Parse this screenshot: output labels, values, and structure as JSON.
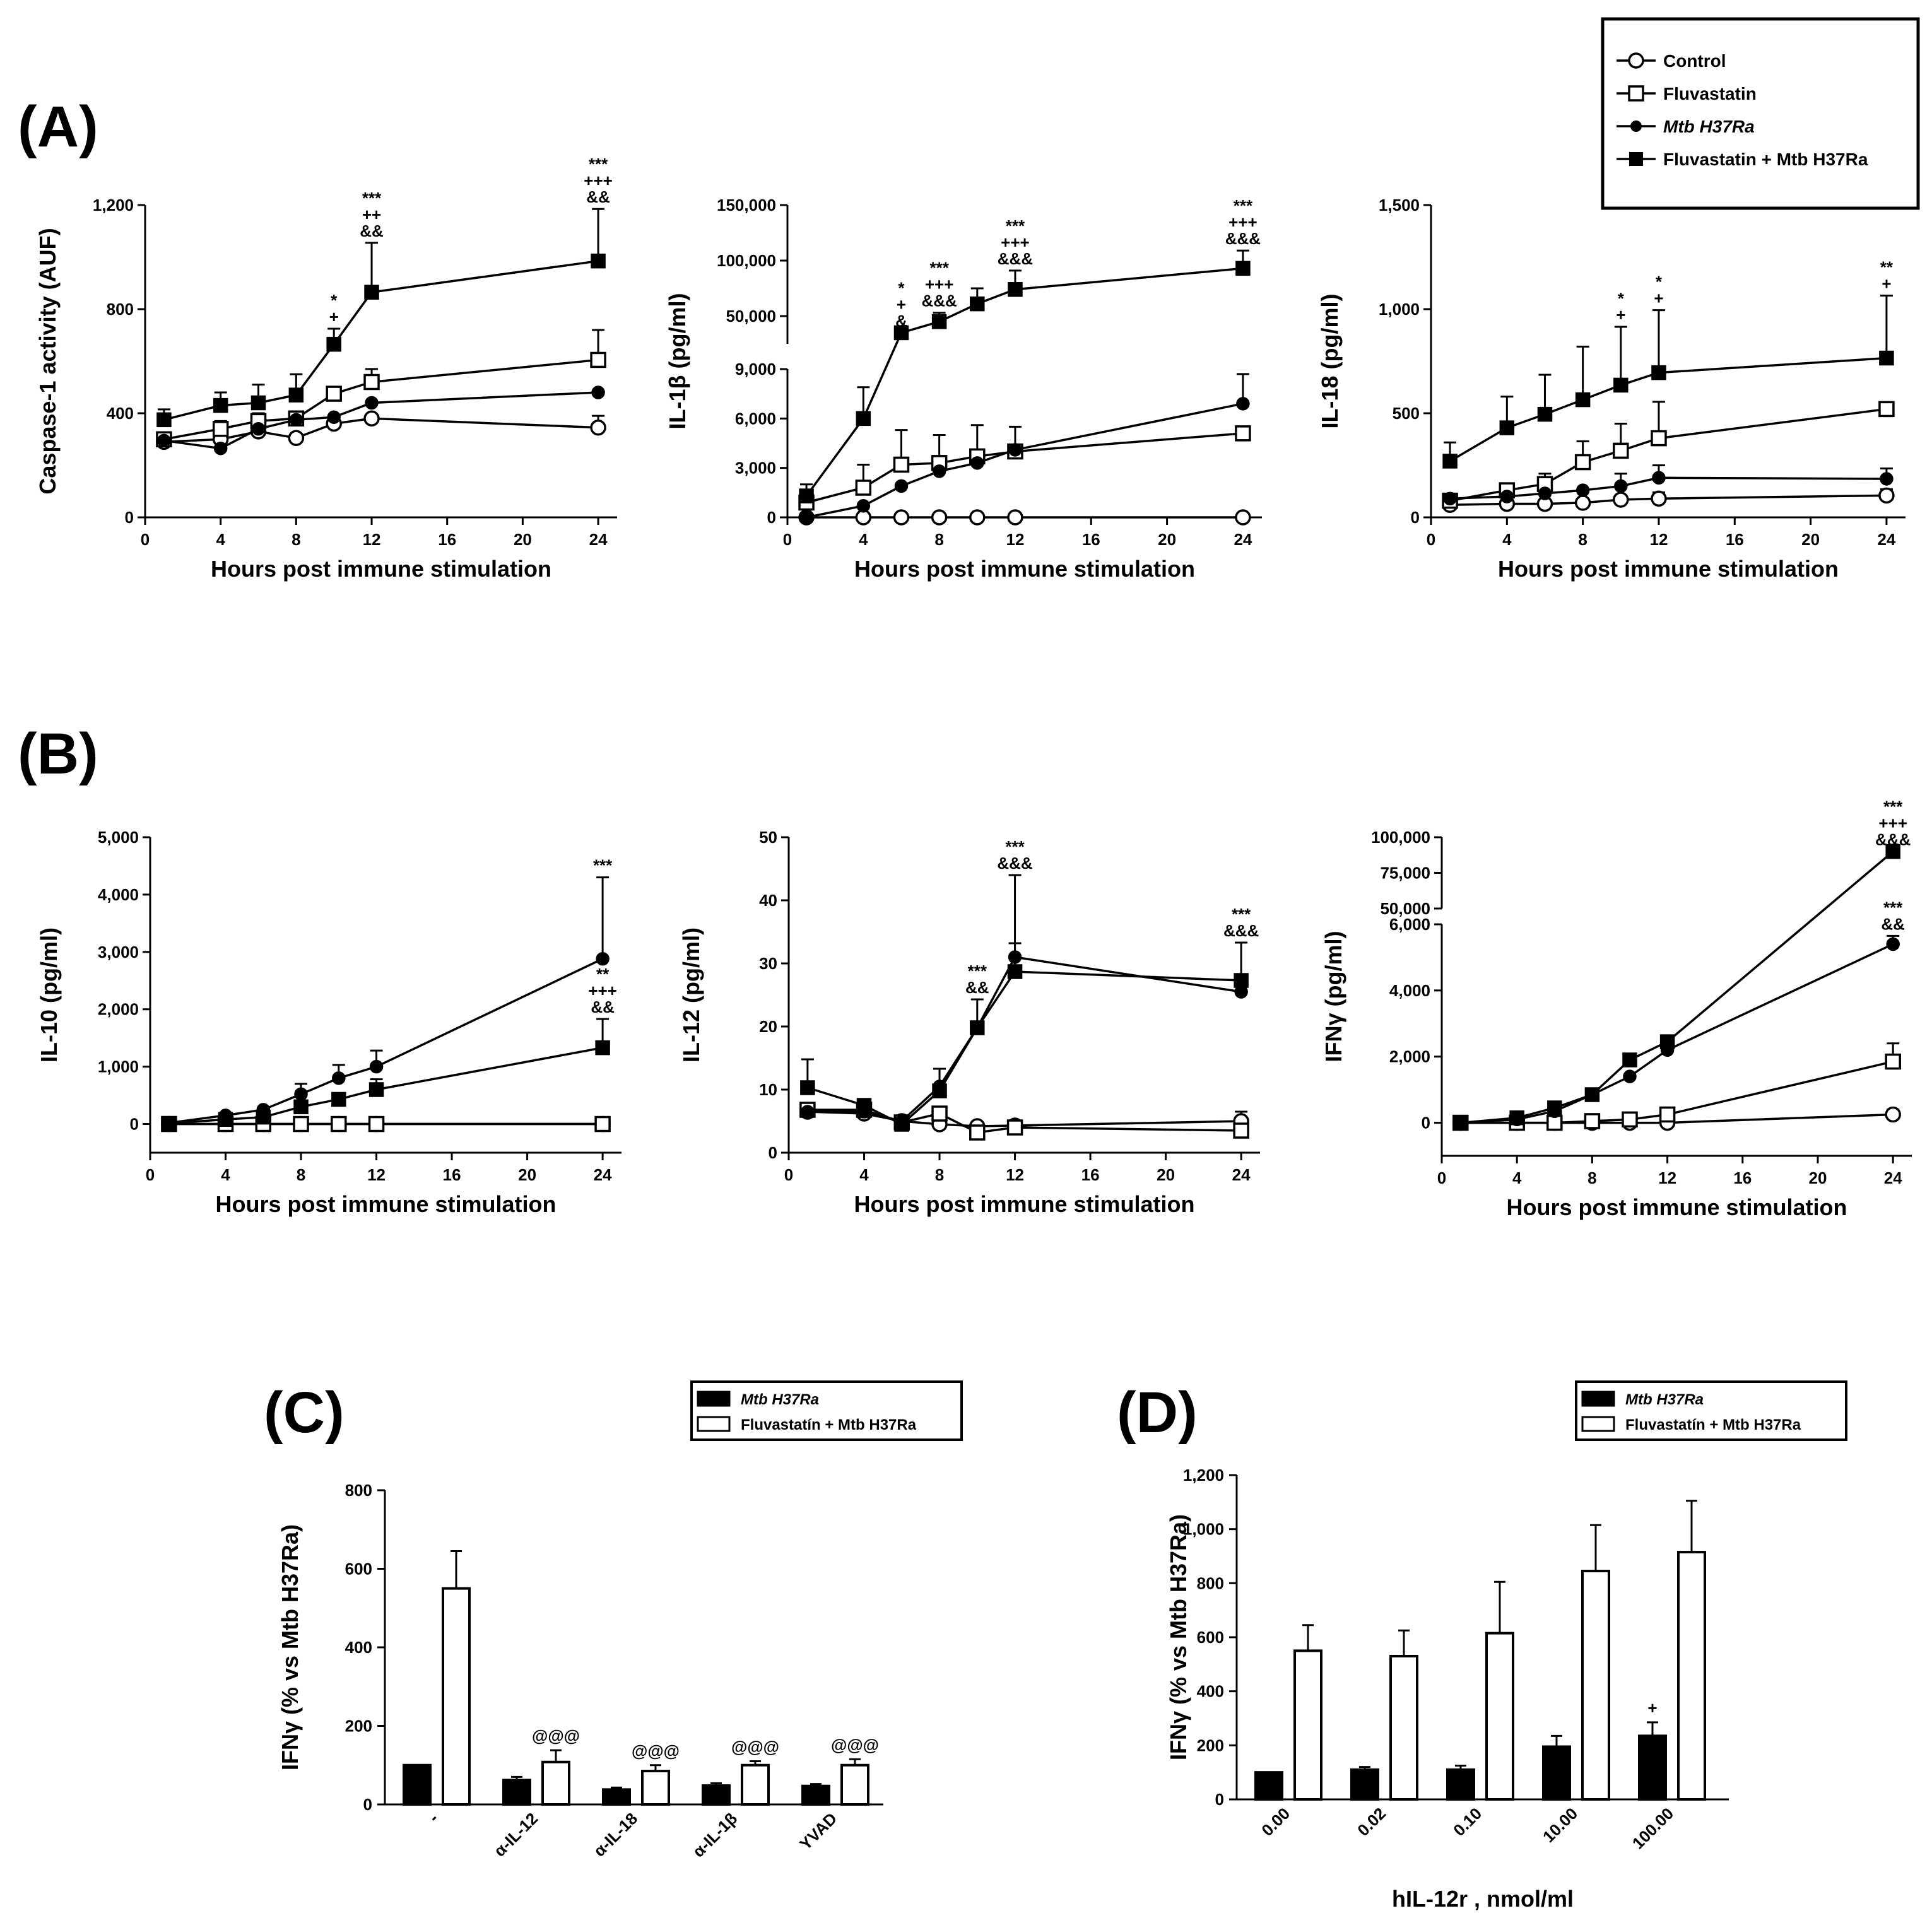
{
  "panel_labels": {
    "A": "(A)",
    "B": "(B)",
    "C": "(C)",
    "D": "(D)"
  },
  "legend_main": [
    {
      "label": "Control",
      "marker": "open-circle"
    },
    {
      "label": "Fluvastatin",
      "marker": "open-square"
    },
    {
      "label": "Mtb H37Ra",
      "marker": "filled-circle"
    },
    {
      "label": "Fluvastatin + Mtb H37Ra",
      "marker": "filled-square"
    }
  ],
  "legend_bars": [
    {
      "label": "Mtb H37Ra",
      "fill": "#000000"
    },
    {
      "label": "Fluvastatín + Mtb H37Ra",
      "fill": "#ffffff"
    }
  ],
  "chart_data": [
    {
      "id": "A1",
      "type": "line",
      "xlabel": "Hours post immune stimulation",
      "ylabel": "Caspase-1 activity (AUF)",
      "xticks": [
        "0",
        "4",
        "8",
        "12",
        "16",
        "20",
        "24"
      ],
      "yticks": [
        "0",
        "400",
        "800",
        "1,200"
      ],
      "xlim": [
        0,
        25
      ],
      "ylim": [
        0,
        1200
      ],
      "x": [
        1,
        4,
        6,
        8,
        10,
        12,
        24
      ],
      "series": [
        {
          "name": "Control",
          "values": [
            290,
            300,
            330,
            305,
            360,
            380,
            345
          ],
          "err": [
            0,
            20,
            0,
            0,
            0,
            0,
            45
          ]
        },
        {
          "name": "Fluvastatin",
          "values": [
            300,
            340,
            370,
            380,
            475,
            520,
            605
          ],
          "err": [
            0,
            30,
            30,
            0,
            0,
            50,
            115
          ]
        },
        {
          "name": "Mtb H37Ra",
          "values": [
            295,
            265,
            340,
            375,
            385,
            440,
            480
          ],
          "err": [
            0,
            0,
            0,
            0,
            0,
            0,
            0
          ]
        },
        {
          "name": "Fluvastatin + Mtb H37Ra",
          "values": [
            375,
            430,
            440,
            470,
            665,
            865,
            985
          ],
          "err": [
            40,
            50,
            70,
            80,
            60,
            190,
            200
          ]
        }
      ],
      "annotations": [
        {
          "x": 10,
          "lines": [
            "*",
            "+"
          ]
        },
        {
          "x": 12,
          "lines": [
            "***",
            "++",
            "&&"
          ]
        },
        {
          "x": 24,
          "lines": [
            "***",
            "+++",
            "&&"
          ]
        }
      ]
    },
    {
      "id": "A2",
      "type": "line",
      "broken_axis": true,
      "xlabel": "Hours post immune stimulation",
      "ylabel": "IL-1β (pg/ml)",
      "xticks": [
        "0",
        "4",
        "8",
        "12",
        "16",
        "20",
        "24"
      ],
      "yticks_low": [
        "0",
        "3,000",
        "6,000",
        "9,000"
      ],
      "yticks_high": [
        "50,000",
        "100,000",
        "150,000"
      ],
      "xlim": [
        0,
        25
      ],
      "ylim_low": [
        0,
        9000
      ],
      "ylim_high": [
        25000,
        150000
      ],
      "x": [
        1,
        4,
        6,
        8,
        10,
        12,
        24
      ],
      "series": [
        {
          "name": "Control",
          "values": [
            0,
            0,
            0,
            0,
            0,
            0,
            0
          ],
          "err": [
            0,
            0,
            0,
            0,
            0,
            0,
            0
          ]
        },
        {
          "name": "Fluvastatin",
          "values": [
            900,
            1800,
            3200,
            3300,
            3700,
            4000,
            5100
          ],
          "err": [
            500,
            1400,
            2100,
            1700,
            1900,
            1500,
            0
          ]
        },
        {
          "name": "Mtb H37Ra",
          "values": [
            0,
            700,
            1900,
            2800,
            3300,
            4100,
            6900
          ],
          "err": [
            0,
            0,
            0,
            0,
            0,
            0,
            1800
          ]
        },
        {
          "name": "Fluvastatin + Mtb H37Ra",
          "values": [
            1300,
            6000,
            35000,
            45000,
            61000,
            74000,
            93000
          ],
          "err": [
            700,
            1900,
            0,
            8000,
            14000,
            17000,
            16000
          ]
        }
      ],
      "annotations": [
        {
          "x": 6,
          "lines": [
            "*",
            "+",
            "&"
          ]
        },
        {
          "x": 8,
          "lines": [
            "***",
            "+++",
            "&&&"
          ]
        },
        {
          "x": 12,
          "lines": [
            "***",
            "+++",
            "&&&"
          ]
        },
        {
          "x": 24,
          "lines": [
            "***",
            "+++",
            "&&&"
          ]
        }
      ]
    },
    {
      "id": "A3",
      "type": "line",
      "xlabel": "Hours post immune stimulation",
      "ylabel": "IL-18 (pg/ml)",
      "xticks": [
        "0",
        "4",
        "8",
        "12",
        "16",
        "20",
        "24"
      ],
      "yticks": [
        "0",
        "500",
        "1,000",
        "1,500"
      ],
      "xlim": [
        0,
        25
      ],
      "ylim": [
        0,
        1500
      ],
      "x": [
        1,
        4,
        6,
        8,
        10,
        12,
        24
      ],
      "series": [
        {
          "name": "Control",
          "values": [
            60,
            65,
            65,
            70,
            85,
            90,
            105
          ],
          "err": [
            0,
            0,
            0,
            0,
            0,
            30,
            30
          ]
        },
        {
          "name": "Fluvastatin",
          "values": [
            80,
            130,
            160,
            265,
            320,
            380,
            520
          ],
          "err": [
            0,
            30,
            50,
            100,
            130,
            175,
            0
          ]
        },
        {
          "name": "Mtb H37Ra",
          "values": [
            90,
            100,
            115,
            130,
            150,
            190,
            185
          ],
          "err": [
            0,
            0,
            0,
            0,
            60,
            60,
            50
          ]
        },
        {
          "name": "Fluvastatin + Mtb H37Ra",
          "values": [
            270,
            430,
            495,
            565,
            635,
            695,
            765
          ],
          "err": [
            90,
            150,
            190,
            255,
            280,
            300,
            300
          ]
        }
      ],
      "annotations": [
        {
          "x": 10,
          "lines": [
            "*",
            "+"
          ]
        },
        {
          "x": 12,
          "lines": [
            "*",
            "+"
          ]
        },
        {
          "x": 24,
          "lines": [
            "**",
            "+"
          ]
        }
      ]
    },
    {
      "id": "B1",
      "type": "line",
      "xlabel": "Hours post immune stimulation",
      "ylabel": "IL-10 (pg/ml)",
      "xticks": [
        "0",
        "4",
        "8",
        "12",
        "16",
        "20",
        "24"
      ],
      "yticks": [
        "0",
        "1,000",
        "2,000",
        "3,000",
        "4,000",
        "5,000"
      ],
      "xlim": [
        0,
        25
      ],
      "ylim": [
        -500,
        5000
      ],
      "x": [
        1,
        4,
        6,
        8,
        10,
        12,
        24
      ],
      "series": [
        {
          "name": "Control",
          "values": [
            0,
            0,
            0,
            0,
            0,
            0,
            0
          ],
          "err": [
            0,
            0,
            0,
            0,
            0,
            0,
            0
          ]
        },
        {
          "name": "Fluvastatin",
          "values": [
            0,
            0,
            0,
            0,
            0,
            0,
            0
          ],
          "err": [
            0,
            0,
            0,
            0,
            0,
            0,
            0
          ]
        },
        {
          "name": "Mtb H37Ra",
          "values": [
            20,
            150,
            250,
            520,
            800,
            1000,
            2880
          ],
          "err": [
            0,
            0,
            0,
            180,
            230,
            280,
            1420
          ]
        },
        {
          "name": "Fluvastatin + Mtb H37Ra",
          "values": [
            10,
            80,
            120,
            300,
            430,
            600,
            1330
          ],
          "err": [
            0,
            0,
            0,
            0,
            0,
            180,
            500
          ]
        }
      ],
      "annotations": [
        {
          "x": 24,
          "lines": [
            "***"
          ],
          "anchor": "top"
        },
        {
          "x": 24,
          "lines": [
            "**",
            "+++",
            "&&"
          ],
          "anchor": "mid"
        }
      ]
    },
    {
      "id": "B2",
      "type": "line",
      "xlabel": "Hours post immune stimulation",
      "ylabel": "IL-12 (pg/ml)",
      "xticks": [
        "0",
        "4",
        "8",
        "12",
        "16",
        "20",
        "24"
      ],
      "yticks": [
        "0",
        "10",
        "20",
        "30",
        "40",
        "50"
      ],
      "xlim": [
        0,
        25
      ],
      "ylim": [
        0,
        50
      ],
      "x": [
        1,
        4,
        6,
        8,
        10,
        12,
        24
      ],
      "series": [
        {
          "name": "Control",
          "values": [
            6.5,
            6.2,
            5.0,
            4.5,
            4.2,
            4.3,
            5.0
          ],
          "err": [
            0,
            0,
            0,
            0,
            0,
            0,
            1.5
          ]
        },
        {
          "name": "Fluvastatin",
          "values": [
            6.8,
            6.8,
            4.8,
            6.2,
            3.2,
            4.0,
            3.5
          ],
          "err": [
            0,
            0,
            0,
            0,
            0,
            0,
            0
          ]
        },
        {
          "name": "Mtb H37Ra",
          "values": [
            6.5,
            6.5,
            5.0,
            10.5,
            19.8,
            31.0,
            25.5
          ],
          "err": [
            0,
            0,
            0,
            0,
            0,
            13,
            0
          ]
        },
        {
          "name": "Fluvastatin + Mtb H37Ra",
          "values": [
            10.3,
            7.5,
            4.5,
            9.8,
            19.8,
            28.7,
            27.3
          ],
          "err": [
            4.5,
            0,
            0,
            3.5,
            4.5,
            4.5,
            6
          ]
        }
      ],
      "annotations": [
        {
          "x": 10,
          "lines": [
            "***",
            "&&"
          ]
        },
        {
          "x": 12,
          "lines": [
            "***",
            "&&&"
          ]
        },
        {
          "x": 24,
          "lines": [
            "***",
            "&&&"
          ]
        }
      ]
    },
    {
      "id": "B3",
      "type": "line",
      "broken_axis": true,
      "xlabel": "Hours post immune stimulation",
      "ylabel": "IFNγ (pg/ml)",
      "xticks": [
        "0",
        "4",
        "8",
        "12",
        "16",
        "20",
        "24"
      ],
      "yticks_low": [
        "0",
        "2,000",
        "4,000",
        "6,000"
      ],
      "yticks_high": [
        "50,000",
        "75,000",
        "100,000"
      ],
      "xlim": [
        0,
        25
      ],
      "ylim_low": [
        -1000,
        6000
      ],
      "ylim_high": [
        50000,
        100000
      ],
      "x": [
        1,
        4,
        6,
        8,
        10,
        12,
        24
      ],
      "series": [
        {
          "name": "Control",
          "values": [
            0,
            0,
            0,
            0,
            0,
            0,
            250
          ],
          "err": [
            0,
            0,
            0,
            0,
            0,
            0,
            150
          ]
        },
        {
          "name": "Fluvastatin",
          "values": [
            0,
            0,
            0,
            50,
            100,
            250,
            1850
          ],
          "err": [
            0,
            0,
            0,
            0,
            0,
            0,
            550
          ]
        },
        {
          "name": "Mtb H37Ra",
          "values": [
            0,
            100,
            350,
            850,
            1400,
            2200,
            5400
          ],
          "err": [
            0,
            0,
            0,
            0,
            0,
            0,
            250
          ]
        },
        {
          "name": "Fluvastatin + Mtb H37Ra",
          "values": [
            0,
            150,
            450,
            850,
            1900,
            2450,
            90000
          ],
          "err": [
            0,
            0,
            0,
            0,
            0,
            0,
            0
          ]
        }
      ],
      "annotations": [
        {
          "x": 24,
          "lines": [
            "***",
            "+++",
            "&&&"
          ],
          "anchor": "top"
        },
        {
          "x": 24,
          "lines": [
            "***",
            "&&"
          ],
          "anchor": "mid"
        }
      ]
    },
    {
      "id": "C",
      "type": "bar",
      "ylabel": "IFNγ (% vs Mtb H37Ra)",
      "categories": [
        "-",
        "α-IL-12",
        "α-IL-18",
        "α-IL-1β",
        "YVAD"
      ],
      "yticks": [
        "0",
        "200",
        "400",
        "600",
        "800"
      ],
      "ylim": [
        0,
        800
      ],
      "series": [
        {
          "name": "Mtb H37Ra",
          "values": [
            100,
            62,
            38,
            48,
            47
          ],
          "err": [
            0,
            8,
            5,
            6,
            5
          ]
        },
        {
          "name": "Fluvastatín + Mtb H37Ra",
          "values": [
            550,
            108,
            85,
            100,
            100
          ],
          "err": [
            95,
            30,
            15,
            10,
            15
          ]
        }
      ],
      "annotations": [
        "",
        "@@@",
        "@@@",
        "@@@",
        "@@@"
      ]
    },
    {
      "id": "D",
      "type": "bar",
      "ylabel": "IFNγ (% vs Mtb H37Ra)",
      "xlabel": "hIL-12r , nmol/ml",
      "categories": [
        "0.00",
        "0.02",
        "0.10",
        "10.00",
        "100.00"
      ],
      "yticks": [
        "0",
        "200",
        "400",
        "600",
        "800",
        "1,000",
        "1,200"
      ],
      "ylim": [
        0,
        1200
      ],
      "series": [
        {
          "name": "Mtb H37Ra",
          "values": [
            100,
            110,
            110,
            195,
            235
          ],
          "err": [
            0,
            10,
            15,
            40,
            50
          ]
        },
        {
          "name": "Fluvastatín + Mtb H37Ra",
          "values": [
            550,
            530,
            615,
            845,
            915
          ],
          "err": [
            95,
            95,
            190,
            170,
            190
          ]
        }
      ],
      "annotations": [
        "",
        "",
        "",
        "",
        "+"
      ]
    }
  ]
}
